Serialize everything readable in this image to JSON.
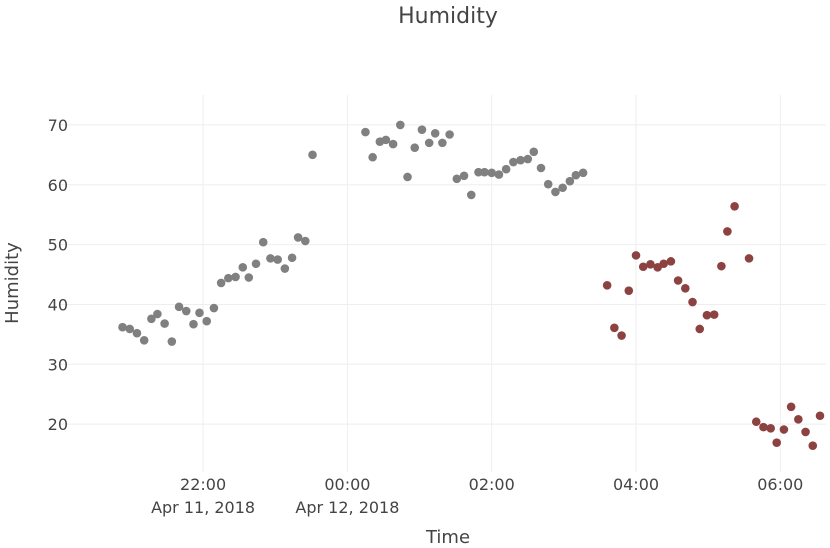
{
  "chart_data": {
    "type": "scatter",
    "title": "Humidity",
    "xlabel": "Time",
    "ylabel": "Humidity",
    "ylim": [
      12,
      75
    ],
    "xlim": [
      "2018-04-11 20:01",
      "2018-04-12 06:38"
    ],
    "y_ticks": [
      20,
      30,
      40,
      50,
      60,
      70
    ],
    "x_ticks": [
      {
        "value": "2018-04-11 22:00",
        "label": "22:00",
        "sublabel": "Apr 11, 2018"
      },
      {
        "value": "2018-04-12 00:00",
        "label": "00:00",
        "sublabel": "Apr 12, 2018"
      },
      {
        "value": "2018-04-12 02:00",
        "label": "02:00",
        "sublabel": ""
      },
      {
        "value": "2018-04-12 04:00",
        "label": "04:00",
        "sublabel": ""
      },
      {
        "value": "2018-04-12 06:00",
        "label": "06:00",
        "sublabel": ""
      }
    ],
    "grid": true,
    "legend": "none",
    "series": [
      {
        "color": "#808080",
        "points": [
          [
            "2018-04-11 20:53",
            36.2
          ],
          [
            "2018-04-11 20:59",
            35.9
          ],
          [
            "2018-04-11 21:05",
            35.2
          ],
          [
            "2018-04-11 21:11",
            34.0
          ],
          [
            "2018-04-11 21:17",
            37.6
          ],
          [
            "2018-04-11 21:22",
            38.4
          ],
          [
            "2018-04-11 21:28",
            36.8
          ],
          [
            "2018-04-11 21:34",
            33.8
          ],
          [
            "2018-04-11 21:40",
            39.6
          ],
          [
            "2018-04-11 21:46",
            38.9
          ],
          [
            "2018-04-11 21:52",
            36.7
          ],
          [
            "2018-04-11 21:57",
            38.6
          ],
          [
            "2018-04-11 22:03",
            37.2
          ],
          [
            "2018-04-11 22:09",
            39.4
          ],
          [
            "2018-04-11 22:15",
            43.6
          ],
          [
            "2018-04-11 22:21",
            44.4
          ],
          [
            "2018-04-11 22:27",
            44.6
          ],
          [
            "2018-04-11 22:33",
            46.2
          ],
          [
            "2018-04-11 22:38",
            44.5
          ],
          [
            "2018-04-11 22:44",
            46.8
          ],
          [
            "2018-04-11 22:50",
            50.4
          ],
          [
            "2018-04-11 22:56",
            47.7
          ],
          [
            "2018-04-11 23:02",
            47.5
          ],
          [
            "2018-04-11 23:08",
            46.0
          ],
          [
            "2018-04-11 23:14",
            47.8
          ],
          [
            "2018-04-11 23:19",
            51.2
          ],
          [
            "2018-04-11 23:25",
            50.6
          ],
          [
            "2018-04-11 23:31",
            65.0
          ],
          [
            "2018-04-12 00:15",
            68.8
          ],
          [
            "2018-04-12 00:21",
            64.6
          ],
          [
            "2018-04-12 00:27",
            67.2
          ],
          [
            "2018-04-12 00:32",
            67.5
          ],
          [
            "2018-04-12 00:38",
            66.8
          ],
          [
            "2018-04-12 00:44",
            70.0
          ],
          [
            "2018-04-12 00:50",
            61.3
          ],
          [
            "2018-04-12 00:56",
            66.2
          ],
          [
            "2018-04-12 01:02",
            69.2
          ],
          [
            "2018-04-12 01:08",
            67.0
          ],
          [
            "2018-04-12 01:13",
            68.6
          ],
          [
            "2018-04-12 01:19",
            67.0
          ],
          [
            "2018-04-12 01:25",
            68.4
          ],
          [
            "2018-04-12 01:31",
            61.0
          ],
          [
            "2018-04-12 01:37",
            61.5
          ],
          [
            "2018-04-12 01:43",
            58.3
          ],
          [
            "2018-04-12 01:49",
            62.1
          ],
          [
            "2018-04-12 01:54",
            62.1
          ],
          [
            "2018-04-12 02:00",
            62.0
          ],
          [
            "2018-04-12 02:06",
            61.7
          ],
          [
            "2018-04-12 02:12",
            62.6
          ],
          [
            "2018-04-12 02:18",
            63.8
          ],
          [
            "2018-04-12 02:24",
            64.1
          ],
          [
            "2018-04-12 02:30",
            64.3
          ],
          [
            "2018-04-12 02:35",
            65.5
          ],
          [
            "2018-04-12 02:41",
            62.8
          ],
          [
            "2018-04-12 02:47",
            60.1
          ],
          [
            "2018-04-12 02:53",
            58.8
          ],
          [
            "2018-04-12 02:59",
            59.5
          ],
          [
            "2018-04-12 03:05",
            60.6
          ],
          [
            "2018-04-12 03:10",
            61.6
          ],
          [
            "2018-04-12 03:16",
            62.0
          ]
        ]
      },
      {
        "color": "#8b4240",
        "points": [
          [
            "2018-04-12 03:36",
            43.2
          ],
          [
            "2018-04-12 03:42",
            36.1
          ],
          [
            "2018-04-12 03:48",
            34.8
          ],
          [
            "2018-04-12 03:54",
            42.3
          ],
          [
            "2018-04-12 04:00",
            48.2
          ],
          [
            "2018-04-12 04:06",
            46.3
          ],
          [
            "2018-04-12 04:12",
            46.7
          ],
          [
            "2018-04-12 04:18",
            46.2
          ],
          [
            "2018-04-12 04:23",
            46.8
          ],
          [
            "2018-04-12 04:29",
            47.2
          ],
          [
            "2018-04-12 04:35",
            44.0
          ],
          [
            "2018-04-12 04:41",
            42.7
          ],
          [
            "2018-04-12 04:47",
            40.4
          ],
          [
            "2018-04-12 04:53",
            35.9
          ],
          [
            "2018-04-12 04:59",
            38.2
          ],
          [
            "2018-04-12 05:05",
            38.3
          ],
          [
            "2018-04-12 05:11",
            46.4
          ],
          [
            "2018-04-12 05:16",
            52.2
          ],
          [
            "2018-04-12 05:22",
            56.4
          ],
          [
            "2018-04-12 05:34",
            47.7
          ],
          [
            "2018-04-12 05:40",
            20.4
          ],
          [
            "2018-04-12 05:46",
            19.5
          ],
          [
            "2018-04-12 05:52",
            19.3
          ],
          [
            "2018-04-12 05:57",
            16.9
          ],
          [
            "2018-04-12 06:03",
            19.1
          ],
          [
            "2018-04-12 06:09",
            22.9
          ],
          [
            "2018-04-12 06:15",
            20.8
          ],
          [
            "2018-04-12 06:21",
            18.7
          ],
          [
            "2018-04-12 06:27",
            16.4
          ],
          [
            "2018-04-12 06:33",
            21.4
          ]
        ]
      }
    ]
  }
}
